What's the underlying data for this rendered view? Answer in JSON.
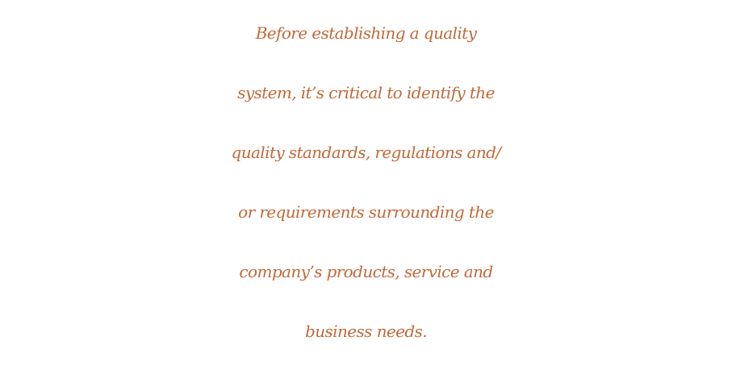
{
  "quote": {
    "lines": [
      "Before establishing a quality",
      "system, it’s critical to identify the",
      "quality standards, regulations and/",
      "or requirements surrounding the",
      "company’s products, service and",
      "business needs."
    ],
    "text_color": "#c0693a",
    "background_color": "#ffffff"
  }
}
